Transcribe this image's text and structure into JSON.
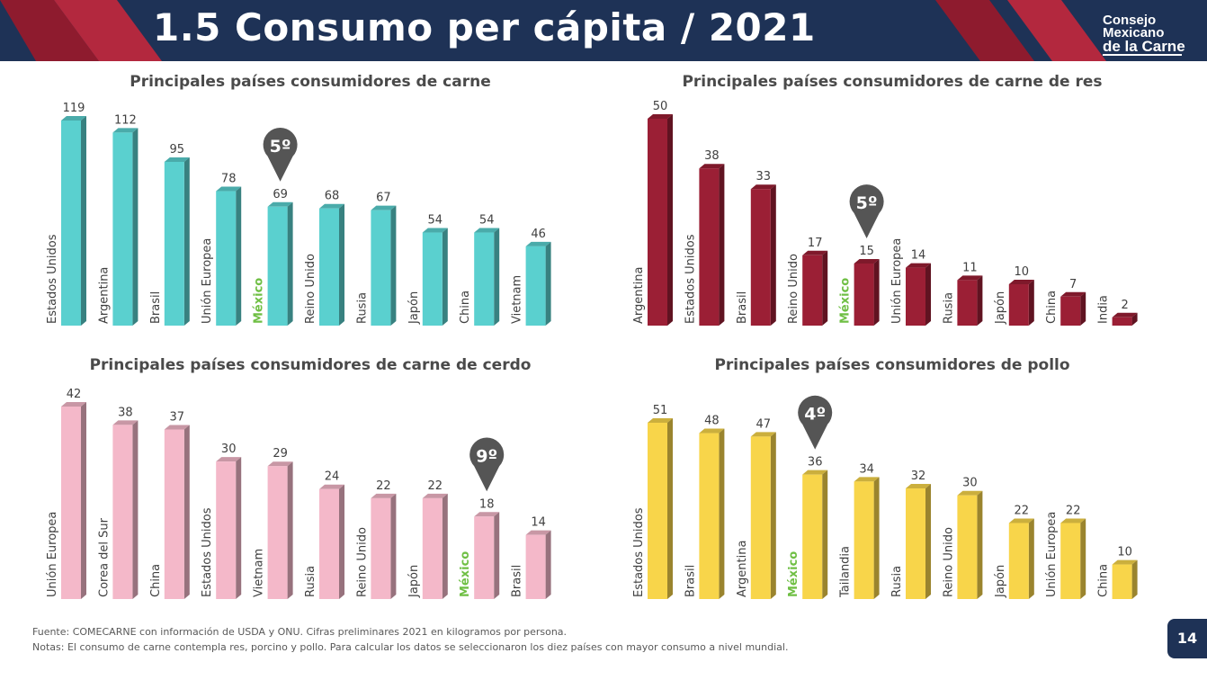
{
  "header": {
    "title": "1.5 Consumo per cápita / 2021"
  },
  "logo": {
    "line1": "Consejo",
    "line2": "Mexicano",
    "line3": "de la Carne"
  },
  "colors": {
    "navy": "#1e3256",
    "teal": "#5ad0cf",
    "maroon": "#9b1f35",
    "pink": "#f4b8c9",
    "yellow": "#f8d54a",
    "mexico": "#6fbf44",
    "pin": "#555555"
  },
  "chart_data": [
    {
      "type": "bar",
      "title": "Principales países consumidores de carne",
      "categories": [
        "Estados Unidos",
        "Argentina",
        "Brasil",
        "Unión Europea",
        "México",
        "Reino Unido",
        "Rusia",
        "Japón",
        "China",
        "Vietnam"
      ],
      "values": [
        119,
        112,
        95,
        78,
        69,
        68,
        67,
        54,
        54,
        46
      ],
      "value_labels": [
        "119",
        "112",
        "95",
        "78",
        "69",
        "68",
        "67",
        "54",
        "54",
        "46"
      ],
      "highlight": "México",
      "rank_label": "5º",
      "xlabel": "",
      "ylabel": "",
      "ylim": [
        0,
        119
      ]
    },
    {
      "type": "bar",
      "title": "Principales países consumidores de carne de res",
      "categories": [
        "Argentina",
        "Estados Unidos",
        "Brasil",
        "Reino Unido",
        "México",
        "Unión Europea",
        "Rusia",
        "Japón",
        "China",
        "India"
      ],
      "values": [
        50,
        38,
        33,
        17,
        15,
        14,
        11,
        10,
        7,
        2
      ],
      "value_labels": [
        "50",
        "38",
        "33",
        "17",
        "15",
        "14",
        "11",
        "10",
        "7",
        "2"
      ],
      "highlight": "México",
      "rank_label": "5º",
      "xlabel": "",
      "ylabel": "",
      "ylim": [
        0,
        50
      ]
    },
    {
      "type": "bar",
      "title": "Principales países consumidores de carne de cerdo",
      "categories": [
        "Unión Europea",
        "Corea del Sur",
        "China",
        "Estados Unidos",
        "Vietnam",
        "Rusia",
        "Reino Unido",
        "Japón",
        "México",
        "Brasil"
      ],
      "values": [
        42,
        38,
        37,
        30,
        29,
        24,
        22,
        22,
        18,
        14
      ],
      "value_labels": [
        "42",
        "38",
        "37",
        "30",
        "29",
        "24",
        "22",
        "22",
        "18",
        "14"
      ],
      "highlight": "México",
      "rank_label": "9º",
      "xlabel": "",
      "ylabel": "",
      "ylim": [
        0,
        42
      ]
    },
    {
      "type": "bar",
      "title": "Principales países consumidores de pollo",
      "categories": [
        "Estados Unidos",
        "Brasil",
        "Argentina",
        "México",
        "Tailandia",
        "Rusia",
        "Reino Unido",
        "Japón",
        "Unión Europea",
        "China"
      ],
      "values": [
        51,
        48,
        47,
        36,
        34,
        32,
        30,
        22,
        22,
        10
      ],
      "value_labels": [
        "51",
        "48",
        "47",
        "36",
        "34",
        "32",
        "30",
        "22",
        "22",
        "10"
      ],
      "highlight": "México",
      "rank_label": "4º",
      "xlabel": "",
      "ylabel": "",
      "ylim": [
        0,
        51
      ]
    }
  ],
  "footer": {
    "source": "Fuente: COMECARNE con información de USDA y ONU. Cifras preliminares 2021 en kilogramos por persona.",
    "notes": "Notas: El consumo de carne contempla res, porcino y pollo. Para calcular los datos se seleccionaron los diez países con mayor consumo a nivel mundial."
  },
  "page_number": "14"
}
